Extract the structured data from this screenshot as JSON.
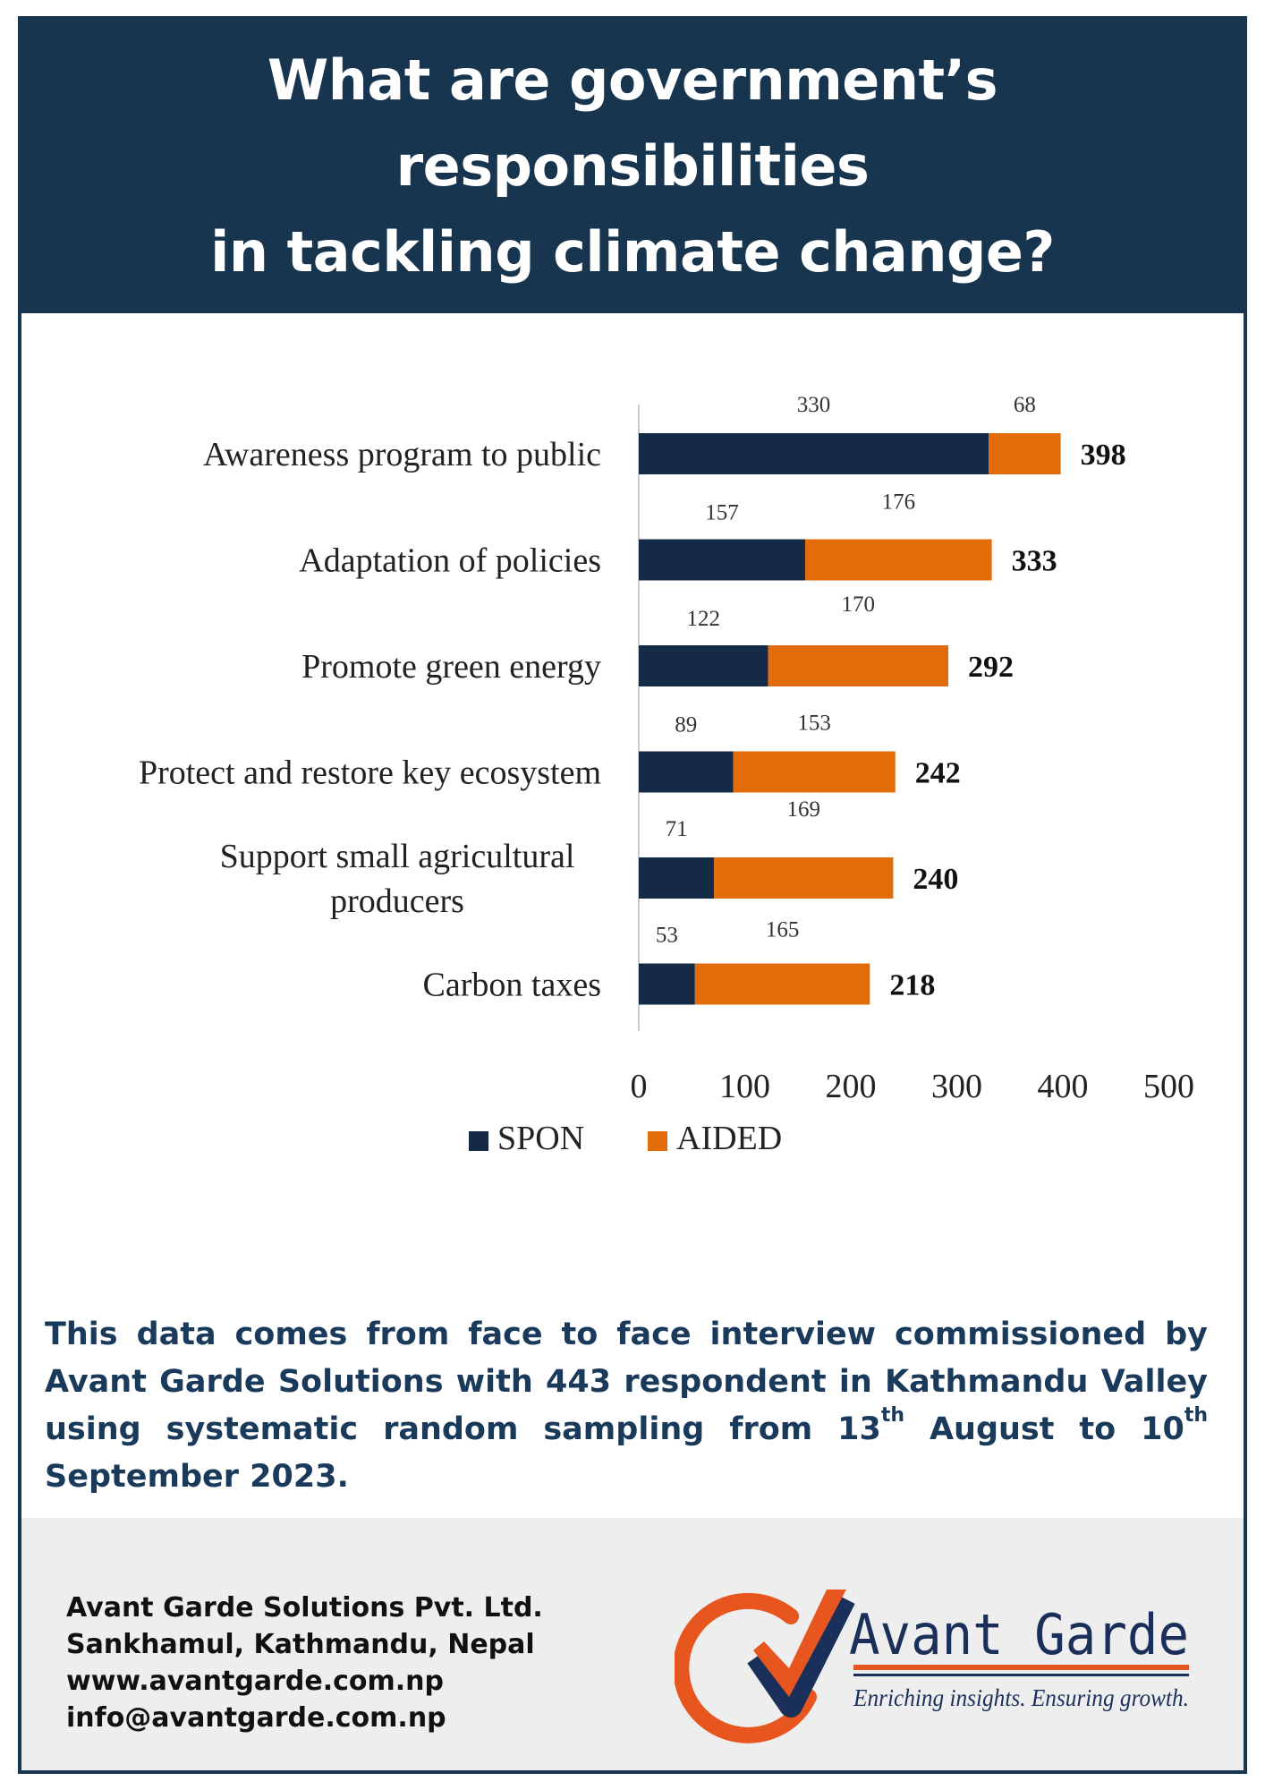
{
  "header": {
    "title_line1": "What are government’s responsibilities",
    "title_line2": "in tackling climate change?"
  },
  "colors": {
    "header_bg": "#18354f",
    "spon": "#142a47",
    "aided": "#e36c0a",
    "logo_orange": "#e8561f",
    "logo_navy": "#1b2f5b"
  },
  "chart_data": {
    "type": "bar",
    "orientation": "horizontal",
    "stacked": true,
    "categories": [
      "Awareness program to public",
      "Adaptation of policies",
      "Promote green energy",
      "Protect and restore key ecosystem",
      "Support small agricultural producers",
      "Carbon taxes"
    ],
    "series": [
      {
        "name": "SPON",
        "values": [
          330,
          157,
          122,
          89,
          71,
          53
        ]
      },
      {
        "name": "AIDED",
        "values": [
          68,
          176,
          170,
          153,
          169,
          165
        ]
      }
    ],
    "totals": [
      398,
      333,
      292,
      242,
      240,
      218
    ],
    "xlim": [
      0,
      500
    ],
    "xticks": [
      "0",
      "100",
      "200",
      "300",
      "400",
      "500"
    ],
    "legend_position": "bottom",
    "grid": false
  },
  "note": {
    "part1": "This data comes from face to face interview commissioned by Avant Garde Solutions with 443 respondent in Kathmandu Valley using systematic random sampling from 13",
    "sup1": "th",
    "part2": " August to  10",
    "sup2": "th",
    "part3": "  September 2023."
  },
  "footer": {
    "company": "Avant Garde Solutions Pvt. Ltd.",
    "address": "Sankhamul, Kathmandu, Nepal",
    "website": "www.avantgarde.com.np",
    "email": "info@avantgarde.com.np",
    "brand": "Avant Garde",
    "tagline": "Enriching insights. Ensuring growth.",
    "logo_icon": "check-mark-circle-icon"
  }
}
